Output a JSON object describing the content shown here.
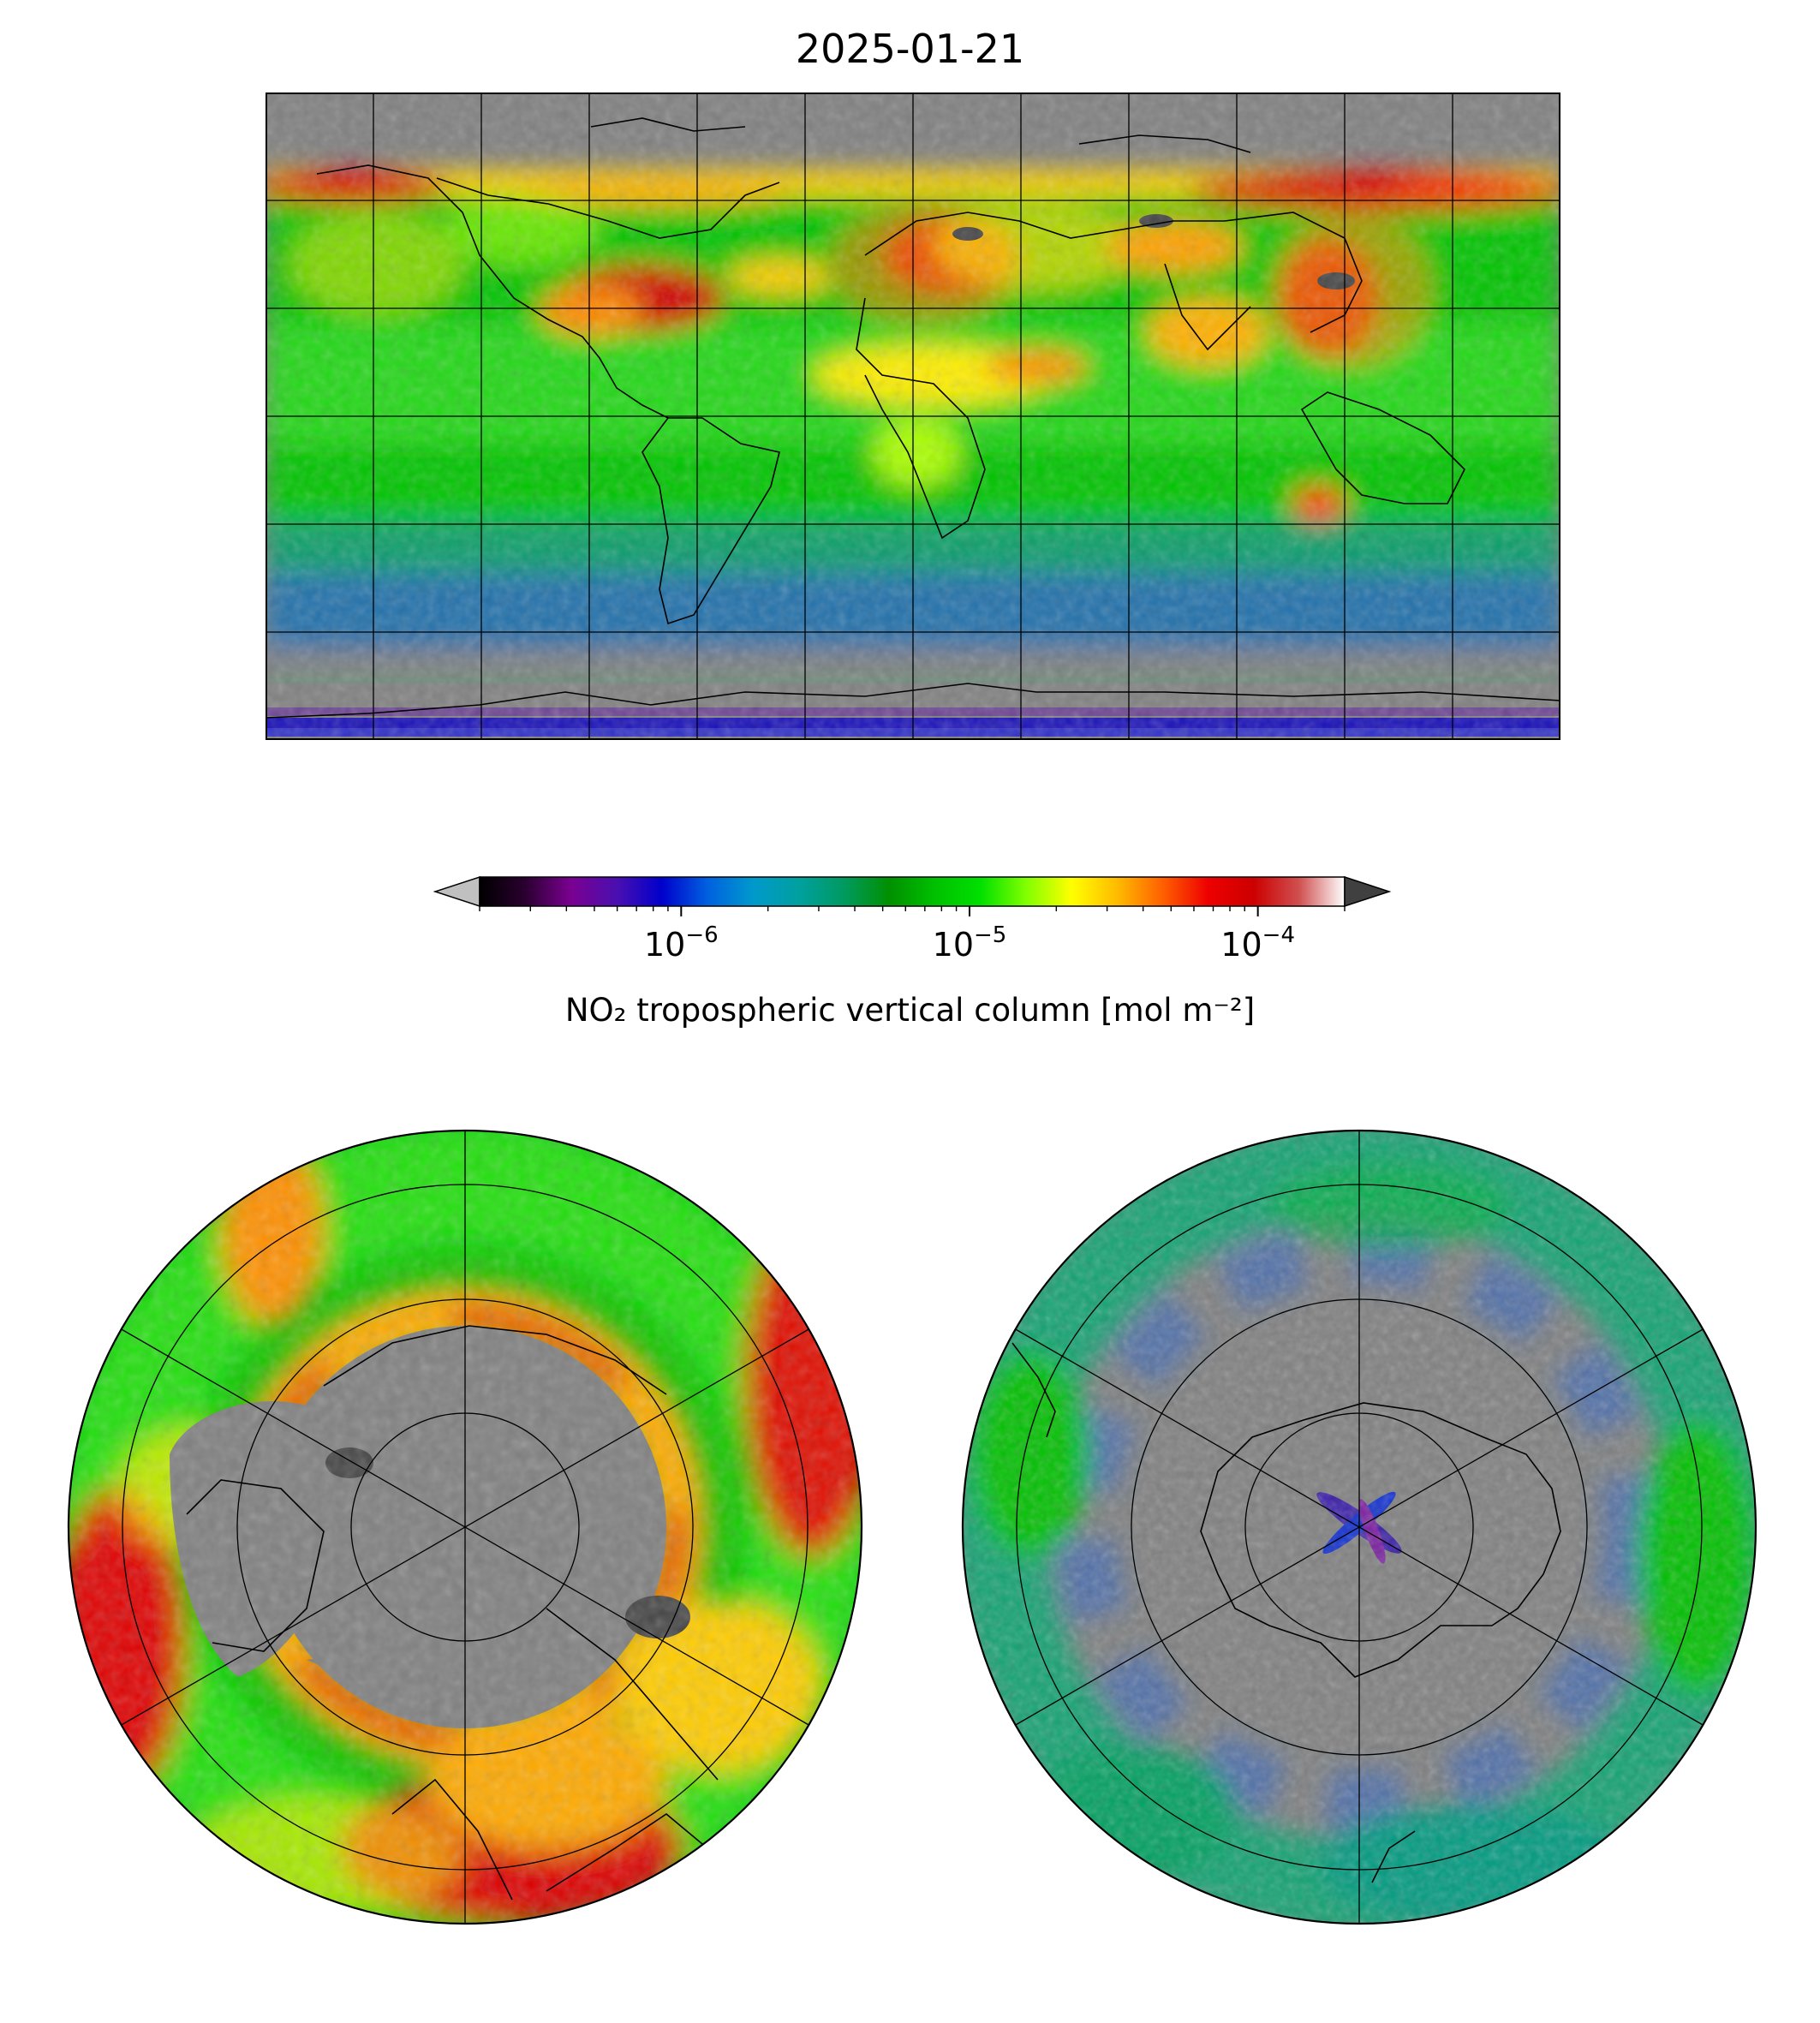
{
  "title": "2025-01-21",
  "colorbar": {
    "label": "NO₂ tropospheric vertical column [mol m⁻²]",
    "scale": "log",
    "min": 2e-07,
    "max": 0.0002,
    "ticks": [
      {
        "value": 1e-06,
        "base": "10",
        "exp": "−6"
      },
      {
        "value": 1e-05,
        "base": "10",
        "exp": "−5"
      },
      {
        "value": 0.0001,
        "base": "10",
        "exp": "−4"
      }
    ],
    "extend_low_color": "#c0c0c0",
    "extend_high_color": "#404040",
    "stops": [
      "#000000",
      "#2a0030",
      "#7a0090",
      "#4b0fb0",
      "#0000cc",
      "#0060e0",
      "#0099cc",
      "#00a0a0",
      "#009a60",
      "#009000",
      "#00c000",
      "#00e000",
      "#80ff00",
      "#ffff00",
      "#ffbb00",
      "#ff6000",
      "#ee0000",
      "#cc0000",
      "#d05050",
      "#ffffff"
    ]
  },
  "maps": {
    "no_data_color": "#808080",
    "main": {
      "projection": "plate-carree"
    },
    "north": {
      "projection": "north-polar-stereographic"
    },
    "south": {
      "projection": "south-polar-stereographic"
    }
  }
}
